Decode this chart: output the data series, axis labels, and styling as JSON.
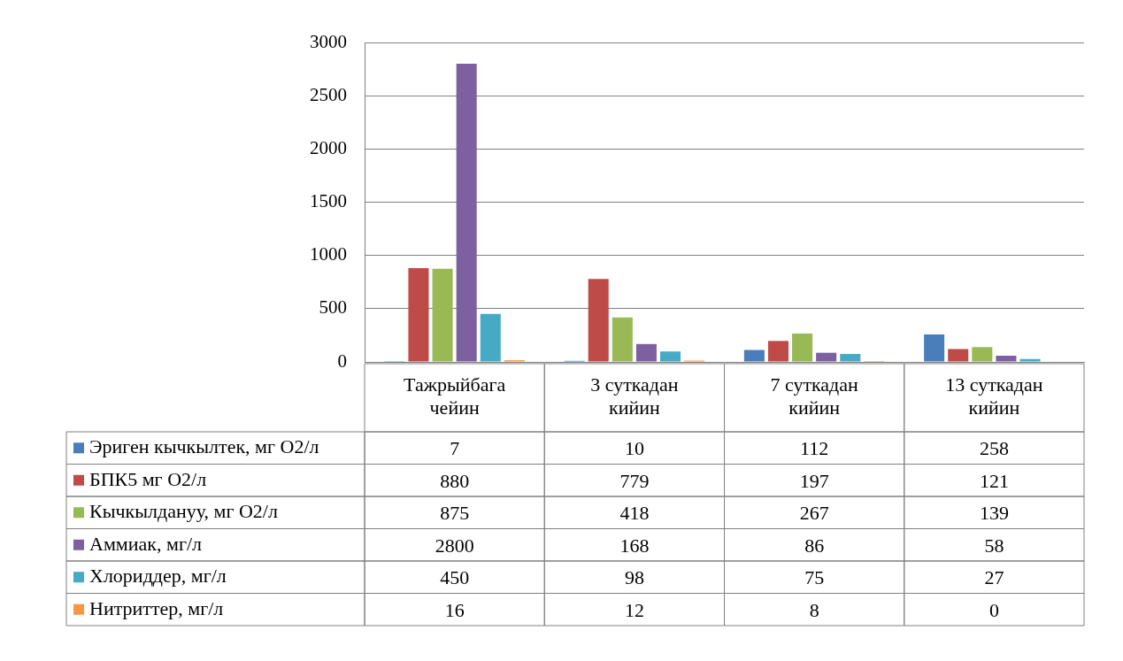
{
  "chart_data": {
    "type": "bar",
    "categories": [
      "Тажрыйбага чейин",
      "3 суткадан кийин",
      "7 суткадан кийин",
      "13 суткадан кийин"
    ],
    "series": [
      {
        "name": "Эриген кычкылтек, мг О2/л",
        "color": "#4a7ebb",
        "values": [
          7,
          10,
          112,
          258
        ]
      },
      {
        "name": "БПК5 мг О2/л",
        "color": "#be4b48",
        "values": [
          880,
          779,
          197,
          121
        ]
      },
      {
        "name": "Кычкылдануу, мг О2/л",
        "color": "#98b954",
        "values": [
          875,
          418,
          267,
          139
        ]
      },
      {
        "name": "Аммиак, мг/л",
        "color": "#7d60a0",
        "values": [
          2800,
          168,
          86,
          58
        ]
      },
      {
        "name": "Хлориддер, мг/л",
        "color": "#46aac5",
        "values": [
          450,
          98,
          75,
          27
        ]
      },
      {
        "name": "Нитриттер, мг/л",
        "color": "#f79646",
        "values": [
          16,
          12,
          8,
          0
        ]
      }
    ],
    "ylim": [
      0,
      3000
    ],
    "yticks": [
      0,
      500,
      1000,
      1500,
      2000,
      2500,
      3000
    ],
    "grid": "y",
    "legend": "bottom",
    "data_labels": true
  }
}
